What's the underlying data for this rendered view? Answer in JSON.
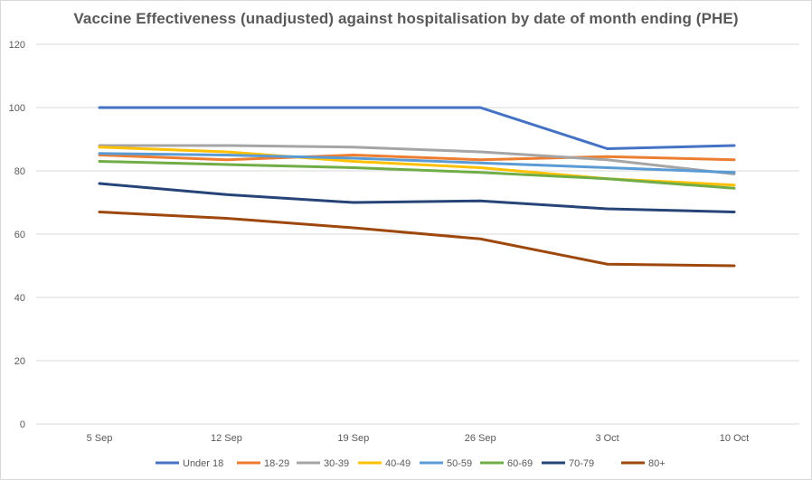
{
  "chart_data": {
    "type": "line",
    "title": "Vaccine Effectiveness (unadjusted) against hospitalisation by date of month ending (PHE)",
    "xlabel": "",
    "ylabel": "",
    "categories": [
      "5 Sep",
      "12 Sep",
      "19 Sep",
      "26 Sep",
      "3 Oct",
      "10 Oct"
    ],
    "ylim": [
      0,
      120
    ],
    "yticks": [
      "0",
      "20",
      "40",
      "60",
      "80",
      "100",
      "120"
    ],
    "grid": true,
    "legend_position": "bottom",
    "series": [
      {
        "name": "Under 18",
        "color": "#4472c4",
        "values": [
          100,
          100,
          100,
          100,
          87,
          88
        ]
      },
      {
        "name": "18-29",
        "color": "#ed7d31",
        "values": [
          85,
          83.5,
          85,
          83.5,
          84.5,
          83.5
        ]
      },
      {
        "name": "30-39",
        "color": "#a5a5a5",
        "values": [
          88,
          88,
          87.5,
          86,
          83.5,
          79
        ]
      },
      {
        "name": "40-49",
        "color": "#ffc000",
        "values": [
          87.5,
          86,
          83,
          81,
          77.5,
          75.5
        ]
      },
      {
        "name": "50-59",
        "color": "#5b9bd5",
        "values": [
          85.5,
          85,
          84,
          82.5,
          81,
          79.5
        ]
      },
      {
        "name": "60-69",
        "color": "#70ad47",
        "values": [
          83,
          82,
          81,
          79.5,
          77.5,
          74.5
        ]
      },
      {
        "name": "70-79",
        "color": "#264478",
        "values": [
          76,
          72.5,
          70,
          70.5,
          68,
          67
        ]
      },
      {
        "name": "80+",
        "color": "#9e480e",
        "values": [
          67,
          65,
          62,
          58.5,
          50.5,
          50
        ]
      }
    ]
  }
}
